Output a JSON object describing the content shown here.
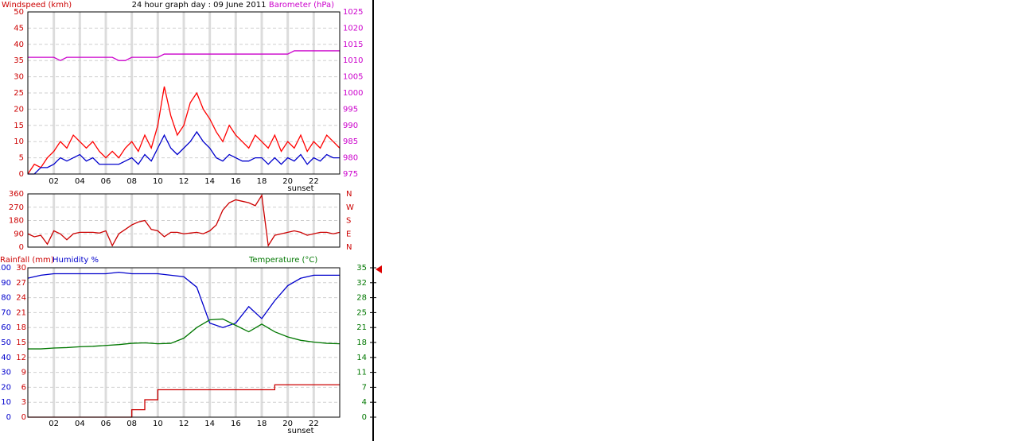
{
  "chart_data": [
    {
      "type": "line",
      "title": "24 hour graph day : 09 June 2011",
      "ylabel": "Windspeed (kmh)",
      "y2label": "Barometer (hPa)",
      "ycolor": "#cc0000",
      "y2color": "#cc00cc",
      "x": [
        0,
        0.5,
        1,
        1.5,
        2,
        2.5,
        3,
        3.5,
        4,
        4.5,
        5,
        5.5,
        6,
        6.5,
        7,
        7.5,
        8,
        8.5,
        9,
        9.5,
        10,
        10.5,
        11,
        11.5,
        12,
        12.5,
        13,
        13.5,
        14,
        14.5,
        15,
        15.5,
        16,
        16.5,
        17,
        17.5,
        18,
        18.5,
        19,
        19.5,
        20,
        20.5,
        21,
        21.5,
        22,
        22.5,
        23,
        23.5,
        24
      ],
      "xlim": [
        0,
        24
      ],
      "xticks": [
        {
          "value": 2,
          "label": "02"
        },
        {
          "value": 4,
          "label": "04"
        },
        {
          "value": 6,
          "label": "06"
        },
        {
          "value": 8,
          "label": "08"
        },
        {
          "value": 10,
          "label": "10"
        },
        {
          "value": 12,
          "label": "12"
        },
        {
          "value": 14,
          "label": "14"
        },
        {
          "value": 16,
          "label": "16"
        },
        {
          "value": 18,
          "label": "18"
        },
        {
          "value": 20,
          "label": "20"
        },
        {
          "value": 22,
          "label": "22"
        }
      ],
      "ylim": [
        0,
        50
      ],
      "yticks": [
        0,
        5,
        10,
        15,
        20,
        25,
        30,
        35,
        40,
        45,
        50
      ],
      "y2lim": [
        975,
        1025
      ],
      "y2ticks": [
        975,
        980,
        985,
        990,
        995,
        1000,
        1005,
        1010,
        1015,
        1020,
        1025
      ],
      "grid": true,
      "annotation": {
        "text": "sunset",
        "x": 21
      },
      "series": [
        {
          "color": "#ff0000",
          "values": [
            0,
            3,
            2,
            5,
            7,
            10,
            8,
            12,
            10,
            8,
            10,
            7,
            5,
            7,
            5,
            8,
            10,
            7,
            12,
            8,
            15,
            27,
            18,
            12,
            15,
            22,
            25,
            20,
            17,
            13,
            10,
            15,
            12,
            10,
            8,
            12,
            10,
            8,
            12,
            7,
            10,
            8,
            12,
            7,
            10,
            8,
            12,
            10,
            8
          ]
        },
        {
          "color": "#0000cc",
          "values": [
            0,
            0,
            2,
            2,
            3,
            5,
            4,
            5,
            6,
            4,
            5,
            3,
            3,
            3,
            3,
            4,
            5,
            3,
            6,
            4,
            8,
            12,
            8,
            6,
            8,
            10,
            13,
            10,
            8,
            5,
            4,
            6,
            5,
            4,
            4,
            5,
            5,
            3,
            5,
            3,
            5,
            4,
            6,
            3,
            5,
            4,
            6,
            5,
            5
          ]
        },
        {
          "color": "#cc00cc",
          "axis": "y2",
          "values": [
            1011,
            1011,
            1011,
            1011,
            1011,
            1010,
            1011,
            1011,
            1011,
            1011,
            1011,
            1011,
            1011,
            1011,
            1010,
            1010,
            1011,
            1011,
            1011,
            1011,
            1011,
            1012,
            1012,
            1012,
            1012,
            1012,
            1012,
            1012,
            1012,
            1012,
            1012,
            1012,
            1012,
            1012,
            1012,
            1012,
            1012,
            1012,
            1012,
            1012,
            1012,
            1013,
            1013,
            1013,
            1013,
            1013,
            1013,
            1013,
            1013
          ]
        }
      ]
    },
    {
      "type": "line",
      "ycolor": "#cc0000",
      "y2color": "#cc0000",
      "x": [
        0,
        0.5,
        1,
        1.5,
        2,
        2.5,
        3,
        3.5,
        4,
        4.5,
        5,
        5.5,
        6,
        6.5,
        7,
        7.5,
        8,
        8.5,
        9,
        9.5,
        10,
        10.5,
        11,
        11.5,
        12,
        12.5,
        13,
        13.5,
        14,
        14.5,
        15,
        15.5,
        16,
        16.5,
        17,
        17.5,
        18,
        18.5,
        19,
        19.5,
        20,
        20.5,
        21,
        21.5,
        22,
        22.5,
        23,
        23.5,
        24
      ],
      "xlim": [
        0,
        24
      ],
      "xticks": [
        2,
        4,
        6,
        8,
        10,
        12,
        14,
        16,
        18,
        20,
        22
      ],
      "xtick_labels": false,
      "ylim": [
        0,
        360
      ],
      "yticks": [
        0,
        90,
        180,
        270,
        360
      ],
      "y2lim": [
        0,
        360
      ],
      "y2ticks": [
        {
          "value": 0,
          "label": "N"
        },
        {
          "value": 90,
          "label": "E"
        },
        {
          "value": 180,
          "label": "S"
        },
        {
          "value": 270,
          "label": "W"
        },
        {
          "value": 360,
          "label": "N"
        }
      ],
      "grid": true,
      "series": [
        {
          "color": "#cc0000",
          "values": [
            90,
            70,
            80,
            20,
            110,
            90,
            50,
            90,
            100,
            100,
            100,
            95,
            110,
            10,
            90,
            120,
            150,
            170,
            180,
            120,
            110,
            70,
            100,
            100,
            90,
            95,
            100,
            90,
            110,
            150,
            250,
            300,
            320,
            310,
            300,
            280,
            350,
            10,
            80,
            90,
            100,
            110,
            100,
            80,
            90,
            100,
            100,
            90,
            100
          ]
        }
      ]
    },
    {
      "type": "line",
      "ylabel": "Humidity %",
      "y3label": "Rainfall (mm)",
      "y2label": "Temperature (°C)",
      "ycolor": "#0000cc",
      "y3color": "#cc0000",
      "y2color": "#007700",
      "x": [
        0,
        1,
        2,
        3,
        4,
        5,
        6,
        7,
        8,
        9,
        10,
        11,
        12,
        13,
        14,
        15,
        16,
        17,
        18,
        19,
        20,
        21,
        22,
        23,
        24
      ],
      "xlim": [
        0,
        24
      ],
      "xticks": [
        {
          "value": 2,
          "label": "02"
        },
        {
          "value": 4,
          "label": "04"
        },
        {
          "value": 6,
          "label": "06"
        },
        {
          "value": 8,
          "label": "08"
        },
        {
          "value": 10,
          "label": "10"
        },
        {
          "value": 12,
          "label": "12"
        },
        {
          "value": 14,
          "label": "14"
        },
        {
          "value": 16,
          "label": "16"
        },
        {
          "value": 18,
          "label": "18"
        },
        {
          "value": 20,
          "label": "20"
        },
        {
          "value": 22,
          "label": "22"
        }
      ],
      "ylim": [
        0,
        100
      ],
      "yticks": [
        0,
        10,
        20,
        30,
        40,
        50,
        60,
        70,
        80,
        90,
        100
      ],
      "y3lim": [
        0,
        30
      ],
      "y3ticks": [
        0,
        3,
        6,
        9,
        12,
        15,
        18,
        21,
        24,
        27,
        30
      ],
      "y2lim": [
        0,
        35
      ],
      "y2ticks": [
        0,
        {
          "value": 3.5,
          "label": "4"
        },
        7,
        {
          "value": 10.5,
          "label": "11"
        },
        14,
        {
          "value": 17.5,
          "label": "18"
        },
        21,
        {
          "value": 24.5,
          "label": "25"
        },
        28,
        {
          "value": 31.5,
          "label": "32"
        },
        35
      ],
      "grid": true,
      "annotation": {
        "text": "sunset",
        "x": 21
      },
      "series": [
        {
          "color": "#0000cc",
          "values": [
            93,
            95,
            96,
            96,
            96,
            96,
            96,
            97,
            96,
            96,
            96,
            95,
            94,
            87,
            63,
            60,
            63,
            74,
            66,
            78,
            88,
            93,
            95,
            95,
            95
          ]
        },
        {
          "color": "#007700",
          "axis": "y2",
          "values": [
            16,
            16,
            16.2,
            16.3,
            16.5,
            16.6,
            16.8,
            17,
            17.3,
            17.4,
            17.2,
            17.3,
            18.5,
            21,
            22.8,
            23,
            21.5,
            20,
            21.8,
            20,
            18.8,
            18,
            17.6,
            17.3,
            17.2
          ]
        },
        {
          "color": "#cc0000",
          "axis": "y3",
          "step": true,
          "values": [
            0,
            0,
            0,
            0,
            0,
            0,
            0,
            0,
            1.5,
            3.5,
            5.5,
            5.5,
            5.5,
            5.5,
            5.5,
            5.5,
            5.5,
            5.5,
            5.5,
            6.5,
            6.5,
            6.5,
            6.5,
            6.5,
            6.5
          ]
        }
      ]
    }
  ]
}
